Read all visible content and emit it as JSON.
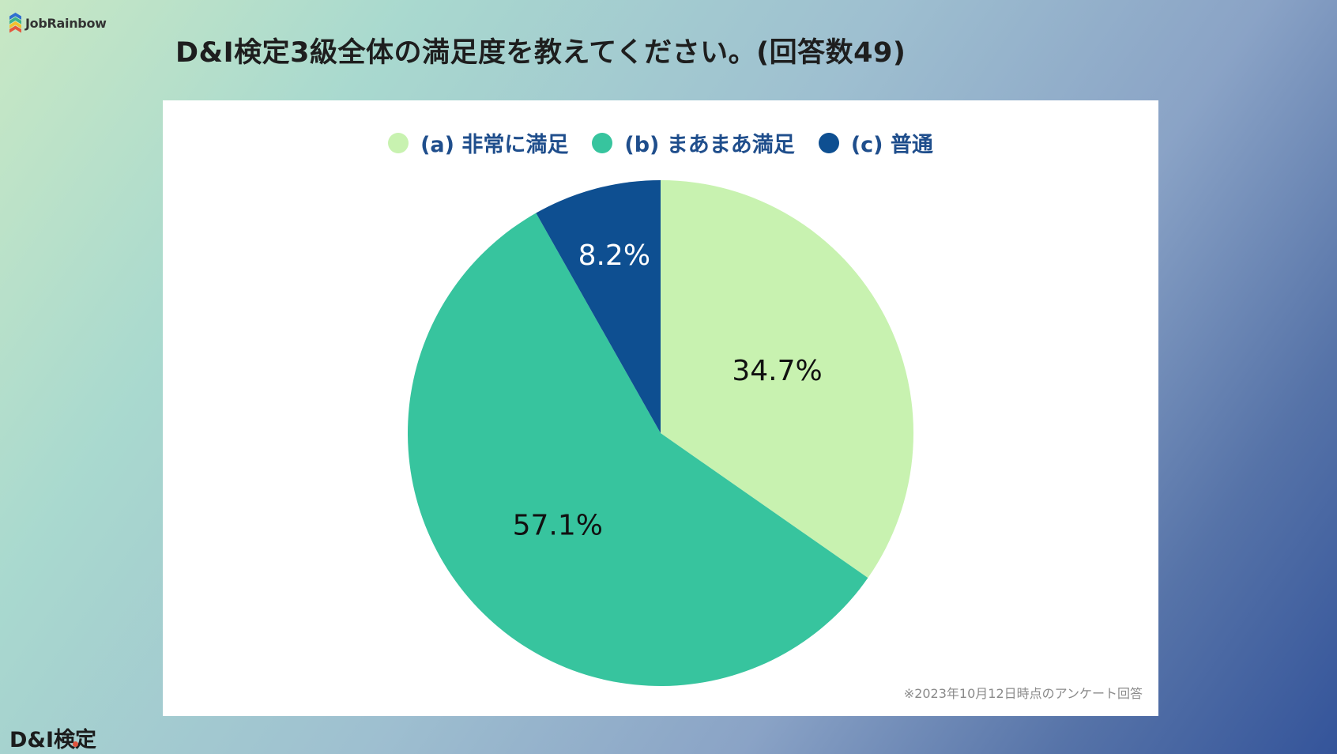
{
  "brand": {
    "name": "JobRainbow",
    "logo_colors": [
      "#2f6fd0",
      "#3db28b",
      "#f2c12e",
      "#e4573d"
    ]
  },
  "page_title": "D&I検定3級全体の満足度を教えてください。(回答数49)",
  "chart_data": {
    "type": "pie",
    "title": "",
    "categories": [
      "(a) 非常に満足",
      "(b) まあまあ満足",
      "(c) 普通"
    ],
    "values": [
      34.7,
      57.1,
      8.2
    ],
    "value_labels": [
      "34.7%",
      "57.1%",
      "8.2%"
    ],
    "colors": [
      "#c8f2b0",
      "#37c49e",
      "#0e4f91"
    ],
    "label_colors": [
      "#111111",
      "#111111",
      "#ffffff"
    ],
    "start_angle": "12 o'clock, clockwise",
    "legend_placement": "top-center"
  },
  "footnote": "※2023年10月12日時点のアンケート回答",
  "footer_logo": {
    "text": "D&I検定",
    "dot_color": "#e0533c"
  }
}
